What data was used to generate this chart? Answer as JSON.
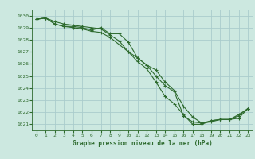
{
  "bg_color": "#cce8e0",
  "grid_color": "#aacccc",
  "line_color": "#2d6a2d",
  "title": "Graphe pression niveau de la mer (hPa)",
  "xlim": [
    -0.5,
    23.5
  ],
  "ylim": [
    1020.5,
    1030.5
  ],
  "yticks": [
    1021,
    1022,
    1023,
    1024,
    1025,
    1026,
    1027,
    1028,
    1029,
    1030
  ],
  "xticks": [
    0,
    1,
    2,
    3,
    4,
    5,
    6,
    7,
    8,
    9,
    10,
    11,
    12,
    13,
    14,
    15,
    16,
    17,
    18,
    19,
    20,
    21,
    22,
    23
  ],
  "series1": [
    1029.7,
    1029.8,
    1029.3,
    1029.1,
    1029.0,
    1028.9,
    1028.7,
    1028.6,
    1028.2,
    1027.6,
    1027.0,
    1026.5,
    1025.9,
    1025.0,
    1024.2,
    1023.7,
    1021.7,
    1021.2,
    1021.1,
    1021.2,
    1021.4,
    1021.4,
    1021.5,
    1022.3
  ],
  "series2": [
    1029.7,
    1029.8,
    1029.3,
    1029.1,
    1029.1,
    1029.0,
    1028.8,
    1029.0,
    1028.5,
    1028.5,
    1027.8,
    1026.5,
    1025.9,
    1025.5,
    1024.5,
    1023.8,
    1022.5,
    1021.6,
    1021.1,
    1021.3,
    1021.4,
    1021.4,
    1021.8,
    1022.3
  ],
  "series3": [
    1029.7,
    1029.8,
    1029.5,
    1029.3,
    1029.2,
    1029.1,
    1029.0,
    1028.9,
    1028.4,
    1027.9,
    1027.0,
    1026.2,
    1025.6,
    1024.5,
    1023.3,
    1022.7,
    1021.8,
    1021.0,
    1021.0,
    1021.3,
    1021.4,
    1021.4,
    1021.7,
    1022.3
  ]
}
